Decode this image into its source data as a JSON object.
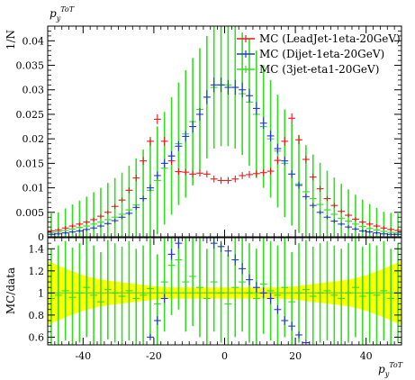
{
  "chart_data": [
    {
      "type": "line",
      "panel": "main",
      "title": "p_y^{ToT}",
      "ylabel": "1/N",
      "xlim": [
        -50,
        50
      ],
      "ylim": [
        0,
        0.043
      ],
      "y_ticks": [
        0,
        0.005,
        0.01,
        0.015,
        0.02,
        0.025,
        0.03,
        0.035,
        0.04
      ],
      "y_tick_labels": [
        "0",
        "0.005",
        "0.01",
        "0.015",
        "0.02",
        "0.025",
        "0.03",
        "0.035",
        "0.04"
      ],
      "legend_position": "top-right",
      "x": [
        -49,
        -47,
        -45,
        -43,
        -41,
        -39,
        -37,
        -35,
        -33,
        -31,
        -29,
        -27,
        -25,
        -23,
        -21,
        -19,
        -17,
        -15,
        -13,
        -11,
        -9,
        -7,
        -5,
        -3,
        -1,
        1,
        3,
        5,
        7,
        9,
        11,
        13,
        15,
        17,
        19,
        21,
        23,
        25,
        27,
        29,
        31,
        33,
        35,
        37,
        39,
        41,
        43,
        45,
        47,
        49
      ],
      "series": [
        {
          "name": "MC (LeadJet-1eta-20GeV)",
          "color": "#e41a1c",
          "values": [
            0.0012,
            0.0014,
            0.0018,
            0.0022,
            0.0026,
            0.003,
            0.0035,
            0.0042,
            0.005,
            0.0062,
            0.0075,
            0.0095,
            0.012,
            0.0155,
            0.0195,
            0.024,
            0.0195,
            0.0155,
            0.0133,
            0.0132,
            0.0128,
            0.013,
            0.0128,
            0.0118,
            0.0115,
            0.0115,
            0.0118,
            0.0125,
            0.0127,
            0.0129,
            0.0131,
            0.0134,
            0.0156,
            0.0195,
            0.0242,
            0.0198,
            0.0158,
            0.0122,
            0.0098,
            0.0078,
            0.0064,
            0.0052,
            0.0044,
            0.0036,
            0.003,
            0.0026,
            0.0022,
            0.0018,
            0.0015,
            0.0013
          ],
          "errors": [
            0.0004,
            0.0004,
            0.0004,
            0.0004,
            0.0004,
            0.0004,
            0.0004,
            0.0004,
            0.0004,
            0.0005,
            0.0005,
            0.0006,
            0.0007,
            0.0008,
            0.0009,
            0.001,
            0.0009,
            0.0008,
            0.0007,
            0.0007,
            0.0007,
            0.0007,
            0.0007,
            0.0007,
            0.0007,
            0.0007,
            0.0007,
            0.0007,
            0.0007,
            0.0007,
            0.0007,
            0.0007,
            0.0008,
            0.0009,
            0.001,
            0.0009,
            0.0008,
            0.0007,
            0.0006,
            0.0005,
            0.0005,
            0.0004,
            0.0004,
            0.0004,
            0.0004,
            0.0004,
            0.0004,
            0.0004,
            0.0004,
            0.0004
          ]
        },
        {
          "name": "MC (Dijet-1eta-20GeV)",
          "color": "#2337c9",
          "values": [
            0.0005,
            0.0006,
            0.0008,
            0.001,
            0.0012,
            0.0015,
            0.0018,
            0.0022,
            0.0027,
            0.0033,
            0.004,
            0.0048,
            0.006,
            0.0078,
            0.01,
            0.0125,
            0.015,
            0.0165,
            0.0185,
            0.0205,
            0.0225,
            0.025,
            0.0285,
            0.031,
            0.031,
            0.0305,
            0.0305,
            0.03,
            0.0288,
            0.0262,
            0.0232,
            0.0206,
            0.018,
            0.0155,
            0.0128,
            0.0105,
            0.0082,
            0.0064,
            0.005,
            0.004,
            0.0032,
            0.0026,
            0.002,
            0.0016,
            0.0012,
            0.001,
            0.0008,
            0.0006,
            0.0005,
            0.0005
          ],
          "errors": [
            0.0003,
            0.0003,
            0.0003,
            0.0003,
            0.0003,
            0.0003,
            0.0003,
            0.0003,
            0.0003,
            0.0004,
            0.0004,
            0.0004,
            0.0005,
            0.0006,
            0.0007,
            0.0008,
            0.0009,
            0.001,
            0.001,
            0.0011,
            0.0012,
            0.0013,
            0.0014,
            0.0015,
            0.0015,
            0.0015,
            0.0015,
            0.0015,
            0.0014,
            0.0013,
            0.0012,
            0.0011,
            0.001,
            0.0009,
            0.0008,
            0.0007,
            0.0006,
            0.0005,
            0.0004,
            0.0004,
            0.0004,
            0.0003,
            0.0003,
            0.0003,
            0.0003,
            0.0003,
            0.0003,
            0.0003,
            0.0003,
            0.0003
          ]
        },
        {
          "name": "MC (3jet-eta1-20GeV)",
          "color": "#33dd22",
          "values": [
            0.0008,
            0.001,
            0.0013,
            0.0016,
            0.0019,
            0.0022,
            0.0026,
            0.003,
            0.0035,
            0.004,
            0.0046,
            0.0055,
            0.0065,
            0.0078,
            0.0095,
            0.0115,
            0.014,
            0.0165,
            0.019,
            0.021,
            0.0235,
            0.026,
            0.0285,
            0.0305,
            0.031,
            0.031,
            0.0305,
            0.0292,
            0.0275,
            0.025,
            0.0225,
            0.02,
            0.0175,
            0.015,
            0.0128,
            0.0108,
            0.0092,
            0.0078,
            0.0066,
            0.0055,
            0.0046,
            0.0038,
            0.0032,
            0.0026,
            0.0021,
            0.0017,
            0.0014,
            0.0011,
            0.0009,
            0.0008
          ],
          "errors": [
            0.004,
            0.004,
            0.0045,
            0.005,
            0.0055,
            0.006,
            0.0065,
            0.007,
            0.0075,
            0.008,
            0.0085,
            0.009,
            0.0095,
            0.01,
            0.0105,
            0.011,
            0.0115,
            0.012,
            0.0125,
            0.013,
            0.013,
            0.0125,
            0.0125,
            0.0125,
            0.0125,
            0.0125,
            0.0125,
            0.0125,
            0.013,
            0.013,
            0.0125,
            0.012,
            0.0115,
            0.011,
            0.0105,
            0.01,
            0.0095,
            0.009,
            0.0085,
            0.008,
            0.0075,
            0.007,
            0.0065,
            0.006,
            0.0055,
            0.005,
            0.0045,
            0.004,
            0.004,
            0.004
          ]
        }
      ]
    },
    {
      "type": "line",
      "panel": "ratio",
      "ylabel": "MC/data",
      "xlabel": "p_y^{ToT}",
      "xlim": [
        -50,
        50
      ],
      "ylim": [
        0.53,
        1.5
      ],
      "x_ticks": [
        -40,
        -20,
        0,
        20,
        40
      ],
      "x_tick_labels": [
        "-40",
        "-20",
        "0",
        "20",
        "40"
      ],
      "y_ticks": [
        0.6,
        0.8,
        1,
        1.2,
        1.4
      ],
      "y_tick_labels": [
        "0.6",
        "0.8",
        "1",
        "1.2",
        "1.4"
      ],
      "band": {
        "color": "#ffff00",
        "x": [
          -50,
          -45,
          -40,
          -35,
          -30,
          -25,
          -20,
          -15,
          -10,
          -5,
          0,
          5,
          10,
          15,
          20,
          25,
          30,
          35,
          40,
          45,
          50
        ],
        "half_width": [
          0.29,
          0.22,
          0.16,
          0.12,
          0.1,
          0.08,
          0.06,
          0.05,
          0.05,
          0.05,
          0.05,
          0.05,
          0.05,
          0.05,
          0.06,
          0.08,
          0.1,
          0.12,
          0.16,
          0.22,
          0.29
        ]
      },
      "reference_line": 1,
      "series": [
        {
          "name": "MC (Dijet-1eta-20GeV)",
          "color": "#2337c9",
          "x": [
            -21,
            -19,
            -17,
            -15,
            -13,
            -11,
            -9,
            -7,
            -5,
            -3,
            -1,
            1,
            3,
            5,
            7,
            9,
            11,
            13,
            15,
            17,
            19,
            21,
            23
          ],
          "values": [
            0.6,
            0.75,
            0.95,
            1.35,
            1.45,
            1.6,
            1.6,
            1.55,
            1.5,
            1.45,
            1.42,
            1.38,
            1.3,
            1.22,
            1.12,
            1.05,
            1.0,
            0.95,
            0.85,
            0.75,
            0.7,
            0.62,
            0.55
          ],
          "errors": [
            0.03,
            0.04,
            0.04,
            0.05,
            0.05,
            0.05,
            0.05,
            0.05,
            0.05,
            0.05,
            0.05,
            0.05,
            0.05,
            0.05,
            0.05,
            0.05,
            0.05,
            0.05,
            0.04,
            0.04,
            0.04,
            0.03,
            0.03
          ]
        },
        {
          "name": "MC (3jet-eta1-20GeV)",
          "color": "#33dd22",
          "x": [
            -49,
            -47,
            -45,
            -43,
            -41,
            -39,
            -37,
            -35,
            -33,
            -31,
            -29,
            -27,
            -25,
            -23,
            -21,
            -19,
            -17,
            -15,
            -13,
            -11,
            -9,
            -7,
            -5,
            -3,
            -1,
            1,
            3,
            5,
            7,
            9,
            11,
            13,
            15,
            17,
            19,
            21,
            23,
            25,
            27,
            29,
            31,
            33,
            35,
            37,
            39,
            41,
            43,
            45,
            47,
            49
          ],
          "values": [
            0.95,
            0.98,
            1.02,
            0.96,
            1.0,
            1.05,
            0.98,
            0.92,
            1.03,
            1.0,
            0.97,
            1.02,
            0.95,
            0.98,
            1.04,
            0.9,
            1.1,
            1.25,
            1.3,
            1.1,
            1.15,
            1.05,
            0.95,
            1.1,
            1.0,
            0.9,
            1.05,
            1.1,
            1.0,
            0.95,
            1.08,
            1.02,
            0.98,
            1.05,
            0.92,
            1.0,
            1.03,
            0.97,
            1.0,
            1.02,
            0.98,
            0.95,
            1.0,
            1.05,
            0.97,
            1.0,
            0.98,
            1.02,
            0.95,
            1.0
          ],
          "errors": [
            0.45,
            0.45,
            0.45,
            0.45,
            0.45,
            0.45,
            0.45,
            0.45,
            0.45,
            0.45,
            0.45,
            0.45,
            0.45,
            0.45,
            0.45,
            0.45,
            0.45,
            0.45,
            0.45,
            0.45,
            0.45,
            0.45,
            0.45,
            0.45,
            0.45,
            0.45,
            0.45,
            0.45,
            0.45,
            0.45,
            0.45,
            0.45,
            0.45,
            0.45,
            0.45,
            0.45,
            0.45,
            0.45,
            0.45,
            0.45,
            0.45,
            0.45,
            0.45,
            0.45,
            0.45,
            0.45,
            0.45,
            0.45,
            0.45,
            0.45
          ]
        }
      ]
    }
  ]
}
